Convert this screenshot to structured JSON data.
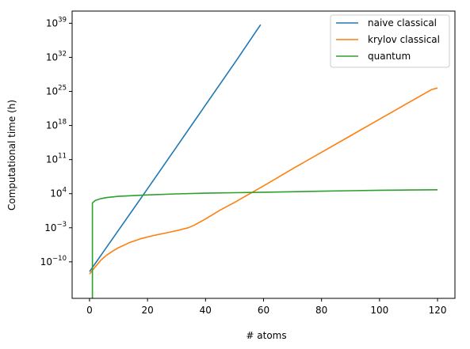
{
  "chart_data": {
    "type": "line",
    "xlabel": "# atoms",
    "ylabel": "Computational time (h)",
    "y_scale": "log",
    "xlim": [
      -6,
      126
    ],
    "ylim_exponent": [
      -17.5,
      41.5
    ],
    "x_ticks": [
      {
        "value": 0,
        "label": "0"
      },
      {
        "value": 20,
        "label": "20"
      },
      {
        "value": 40,
        "label": "40"
      },
      {
        "value": 60,
        "label": "60"
      },
      {
        "value": 80,
        "label": "80"
      },
      {
        "value": 100,
        "label": "100"
      },
      {
        "value": 120,
        "label": "120"
      }
    ],
    "y_ticks": [
      {
        "exponent": -10,
        "base": "10",
        "sup": "−10"
      },
      {
        "exponent": -3,
        "base": "10",
        "sup": "−3"
      },
      {
        "exponent": 4,
        "base": "10",
        "sup": "4"
      },
      {
        "exponent": 11,
        "base": "10",
        "sup": "11"
      },
      {
        "exponent": 18,
        "base": "10",
        "sup": "18"
      },
      {
        "exponent": 25,
        "base": "10",
        "sup": "25"
      },
      {
        "exponent": 32,
        "base": "10",
        "sup": "32"
      },
      {
        "exponent": 39,
        "base": "10",
        "sup": "39"
      }
    ],
    "grid": false,
    "legend_position": "top-right",
    "series": [
      {
        "name": "naive classical",
        "color": "#1f77b4",
        "points": [
          [
            0,
            -12.0
          ],
          [
            10,
            -3.5
          ],
          [
            20,
            5.0
          ],
          [
            30,
            13.6
          ],
          [
            40,
            22.2
          ],
          [
            50,
            30.8
          ],
          [
            59,
            38.7
          ]
        ]
      },
      {
        "name": "krylov classical",
        "color": "#ff7f0e",
        "points": [
          [
            0,
            -12.5
          ],
          [
            2,
            -11.0
          ],
          [
            4,
            -9.6
          ],
          [
            6,
            -8.6
          ],
          [
            8,
            -7.8
          ],
          [
            10,
            -7.1
          ],
          [
            14,
            -6.0
          ],
          [
            18,
            -5.2
          ],
          [
            22,
            -4.6
          ],
          [
            26,
            -4.1
          ],
          [
            30,
            -3.6
          ],
          [
            34,
            -3.0
          ],
          [
            36,
            -2.5
          ],
          [
            40,
            -1.2
          ],
          [
            45,
            0.6
          ],
          [
            50,
            2.2
          ],
          [
            55,
            3.9
          ],
          [
            60,
            5.6
          ],
          [
            70,
            9.1
          ],
          [
            80,
            12.5
          ],
          [
            90,
            15.9
          ],
          [
            100,
            19.3
          ],
          [
            110,
            22.7
          ],
          [
            118,
            25.4
          ],
          [
            120,
            25.7
          ]
        ]
      },
      {
        "name": "quantum",
        "color": "#2ca02c",
        "points": [
          [
            1,
            -17.5
          ],
          [
            1,
            2.1
          ],
          [
            2,
            2.6
          ],
          [
            4,
            3.0
          ],
          [
            6,
            3.2
          ],
          [
            10,
            3.45
          ],
          [
            15,
            3.6
          ],
          [
            20,
            3.75
          ],
          [
            30,
            3.95
          ],
          [
            40,
            4.1
          ],
          [
            50,
            4.2
          ],
          [
            60,
            4.3
          ],
          [
            70,
            4.4
          ],
          [
            80,
            4.5
          ],
          [
            90,
            4.6
          ],
          [
            100,
            4.7
          ],
          [
            110,
            4.75
          ],
          [
            120,
            4.8
          ]
        ]
      }
    ]
  }
}
